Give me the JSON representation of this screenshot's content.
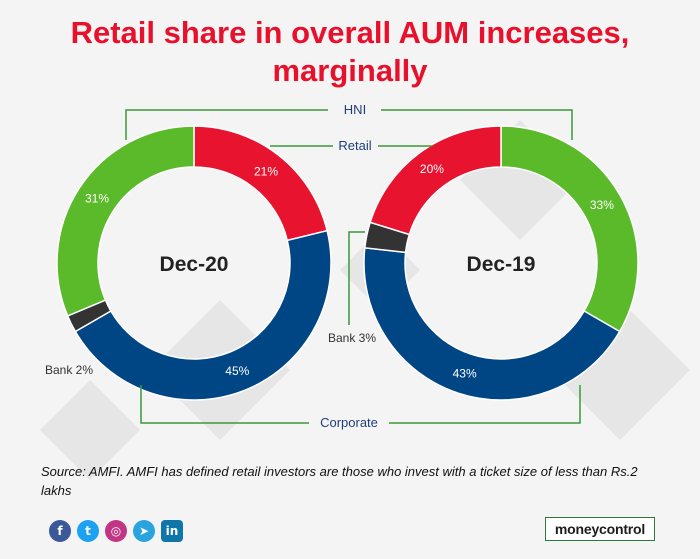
{
  "title": "Retail share in overall AUM increases, marginally",
  "chart_data": {
    "type": "pie",
    "variant": "donut",
    "charts": [
      {
        "label": "Dec-20",
        "slices": [
          {
            "name": "Retail",
            "value": 21,
            "label": "21%"
          },
          {
            "name": "Corporate",
            "value": 45,
            "label": "45%"
          },
          {
            "name": "Bank",
            "value": 2,
            "label": "Bank 2%"
          },
          {
            "name": "HNI",
            "value": 31,
            "label": "31%"
          }
        ]
      },
      {
        "label": "Dec-19",
        "slices": [
          {
            "name": "HNI",
            "value": 33,
            "label": "33%"
          },
          {
            "name": "Corporate",
            "value": 43,
            "label": "43%"
          },
          {
            "name": "Bank",
            "value": 3,
            "label": "Bank 3%"
          },
          {
            "name": "Retail",
            "value": 20,
            "label": "20%"
          }
        ]
      }
    ],
    "callouts": {
      "hni": "HNI",
      "retail": "Retail",
      "corporate": "Corporate"
    },
    "colors": {
      "Retail": "#e8132e",
      "Corporate": "#004685",
      "Bank": "#333333",
      "HNI": "#5bba2a"
    }
  },
  "source": "Source: AMFI. AMFI has defined retail investors are those who invest with a ticket size of less than Rs.2 lakhs",
  "social": [
    {
      "name": "facebook-icon",
      "glyph": "f",
      "color": "#3b5998"
    },
    {
      "name": "twitter-icon",
      "glyph": "t",
      "color": "#1da1f2"
    },
    {
      "name": "instagram-icon",
      "glyph": "◎",
      "color": "#c13584"
    },
    {
      "name": "telegram-icon",
      "glyph": "➤",
      "color": "#2aa3df"
    },
    {
      "name": "linkedin-icon",
      "glyph": "in",
      "color": "#0e76a8"
    }
  ],
  "brand": "moneycontrol"
}
